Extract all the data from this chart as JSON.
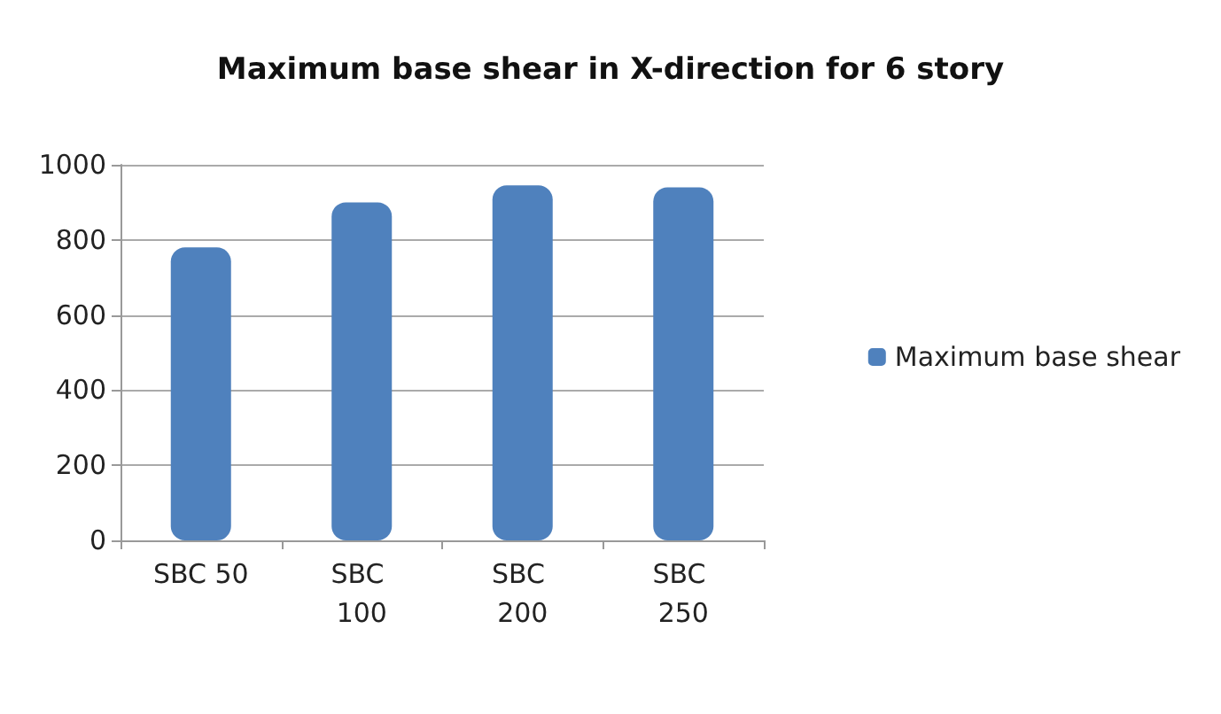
{
  "chart_data": {
    "type": "bar",
    "title": "Maximum base shear in X-direction for 6 story",
    "categories": [
      "SBC 50",
      "SBC 100",
      "SBC 200",
      "SBC 250"
    ],
    "series": [
      {
        "name": "Maximum base shear",
        "color": "#4f81bd",
        "values": [
          780,
          900,
          945,
          940
        ]
      }
    ],
    "ylim": [
      0,
      1000
    ],
    "yticks": [
      0,
      200,
      400,
      600,
      800,
      1000
    ],
    "grid": "y",
    "legend": "right"
  }
}
